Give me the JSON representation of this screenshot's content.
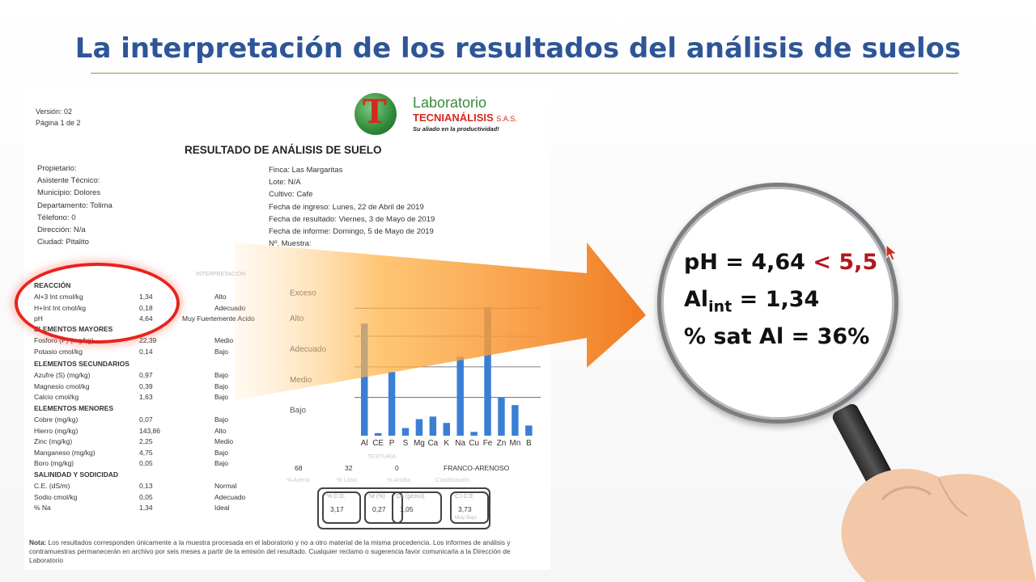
{
  "title": "La interpretación de los resultados del análisis de suelos",
  "document": {
    "version": "Versión: 02",
    "page": "Página 1 de 2",
    "lab_name_1": "Laboratorio",
    "lab_name_2": "TECNIANÁLISIS",
    "lab_sas": "S.A.S.",
    "lab_slogan": "Su aliado en la productividad!",
    "heading": "RESULTADO DE ANÁLISIS DE SUELO",
    "left_info": [
      "Propietario:",
      "Asistente Técnico:",
      "Municipio: Dolores",
      "Departamento: Tolima",
      "Télefono: 0",
      "Dirección: N/a",
      "Ciudad: Pitalito"
    ],
    "right_info": [
      "Finca: Las Margaritas",
      "Lote: N/A",
      "Cultivo: Cafe",
      "Fecha de ingreso: Lunes, 22 de Abril de 2019",
      "Fecha de resultado: Viernes, 3 de Mayo de 2019",
      "Fecha de informe: Domingo, 5 de Mayo de 2019",
      "Nº. Muestra:"
    ],
    "col_interp": "INTERPRETACIÓN",
    "sections": [
      {
        "header": "REACCIÓN",
        "rows": [
          {
            "name": "Al+3 Int cmol/kg",
            "value": "1,34",
            "interp": "Alto"
          },
          {
            "name": "H+Int Int cmol/kg",
            "value": "0,18",
            "interp": "Adecuado"
          },
          {
            "name": "pH",
            "value": "4,64",
            "interp": "Muy Fuertemente Acido"
          }
        ]
      },
      {
        "header": "ELEMENTOS MAYORES",
        "rows": [
          {
            "name": "Fosforo (P) (mg/kg)",
            "value": "22,39",
            "interp": "Medio"
          },
          {
            "name": "Potasio cmol/kg",
            "value": "0,14",
            "interp": "Bajo"
          }
        ]
      },
      {
        "header": "ELEMENTOS SECUNDARIOS",
        "rows": [
          {
            "name": "Azufre (S) (mg/kg)",
            "value": "0,97",
            "interp": "Bajo"
          },
          {
            "name": "Magnesio cmol/kg",
            "value": "0,39",
            "interp": "Bajo"
          },
          {
            "name": "Calcio cmol/kg",
            "value": "1,63",
            "interp": "Bajo"
          }
        ]
      },
      {
        "header": "ELEMENTOS MENORES",
        "rows": [
          {
            "name": "Cobre (mg/kg)",
            "value": "0,07",
            "interp": "Bajo"
          },
          {
            "name": "Hierro (mg/kg)",
            "value": "143,86",
            "interp": "Alto"
          },
          {
            "name": "Zinc (mg/kg)",
            "value": "2,25",
            "interp": "Medio"
          },
          {
            "name": "Manganeso (mg/kg)",
            "value": "4,75",
            "interp": "Bajo"
          },
          {
            "name": "Boro (mg/kg)",
            "value": "0,05",
            "interp": "Bajo"
          }
        ]
      },
      {
        "header": "SALINIDAD Y SODICIDAD",
        "rows": [
          {
            "name": "C.E. (dS/m)",
            "value": "0,13",
            "interp": "Normal"
          },
          {
            "name": "Sodio cmol/kg",
            "value": "0,05",
            "interp": "Adecuado"
          },
          {
            "name": "% Na",
            "value": "1,34",
            "interp": "Ideal"
          }
        ]
      }
    ],
    "texture": {
      "values": [
        "68",
        "32",
        "0",
        "FRANCO-ARENOSO"
      ],
      "labels": [
        "% Arena",
        "% Limo",
        "% Arcilla",
        "Clasificación"
      ],
      "title": "TEXTURA"
    },
    "scores": [
      {
        "label": "% C.O.",
        "value": "3,17"
      },
      {
        "label": "Nt (%)",
        "value": "0,27"
      },
      {
        "label": "Da (g/cm3)",
        "value": "1,05"
      },
      {
        "label": "C.I.C.E",
        "value": "3,73",
        "sub": "Muy Bajo"
      }
    ],
    "note_bold": "Nota:",
    "note": "Los resultados corresponden únicamente a la muestra procesada en el laboratorio y no a otro material de la misma procedencia. Los informes de análisis y contramuestras permanecerán en archivo por seis meses a partir de la emisión del resultado. Cualquier reclamo o sugerencia favor comunicarla a la Dirección de Laboratorio"
  },
  "chart_data": {
    "type": "bar",
    "categories": [
      "Al",
      "CE",
      "P",
      "S",
      "Mg",
      "Ca",
      "K",
      "Na",
      "Cu",
      "Fe",
      "Zn",
      "Mn",
      "B"
    ],
    "values": [
      4.4,
      0.1,
      2.5,
      0.3,
      0.65,
      0.75,
      0.5,
      3.1,
      0.15,
      5.05,
      1.5,
      1.2,
      0.4
    ],
    "ylim": [
      0,
      6
    ],
    "levels": [
      "Bajo",
      "Medio",
      "Adecuado",
      "Alto",
      "Exceso"
    ],
    "bar_color": "#3b7fd4"
  },
  "magnifier": {
    "line1_prefix": "pH = 4,64 ",
    "line1_highlight": "< 5,5",
    "line2_base": "Al",
    "line2_sub": "int",
    "line2_rest": " = 1,34",
    "line3": "% sat Al = 36%",
    "highlight_color": "#b3171b"
  }
}
